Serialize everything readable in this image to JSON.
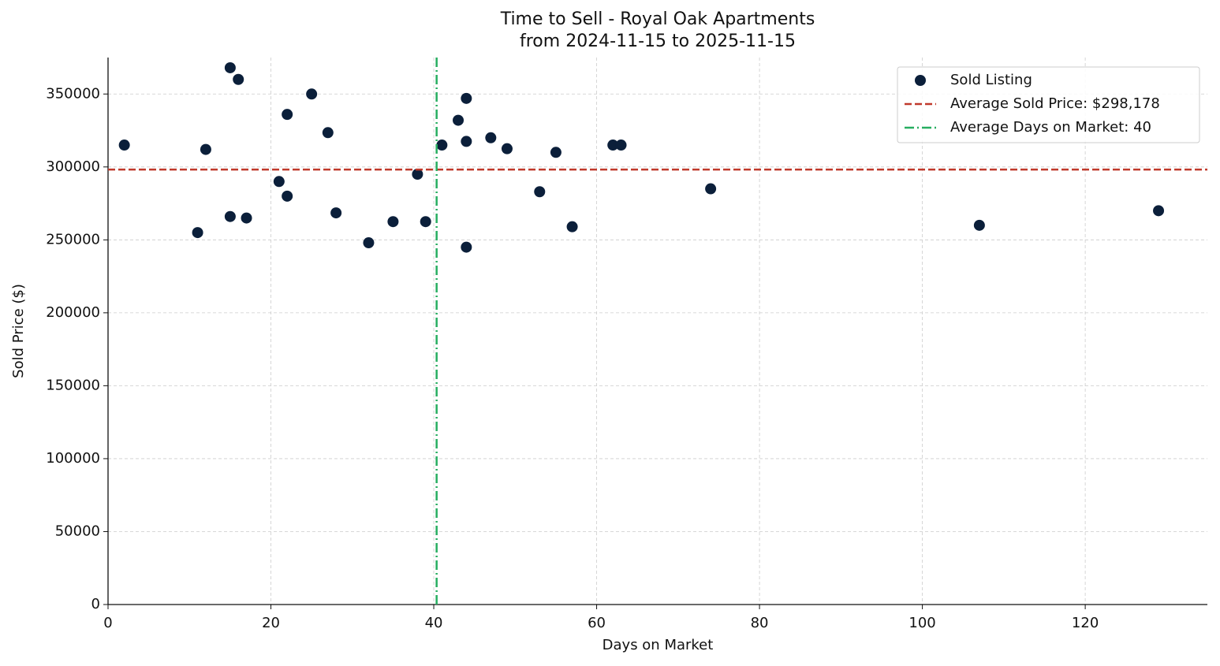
{
  "chart_data": {
    "type": "scatter",
    "title": "Time to Sell - Royal Oak Apartments",
    "subtitle": "from 2024-11-15 to 2025-11-15",
    "x_label": "Days on Market",
    "y_label": "Sold Price ($)",
    "xlim": [
      0,
      135
    ],
    "ylim": [
      0,
      375000
    ],
    "xticks": [
      0,
      20,
      40,
      60,
      80,
      100,
      120
    ],
    "yticks": [
      0,
      50000,
      100000,
      150000,
      200000,
      250000,
      300000,
      350000
    ],
    "grid": true,
    "legend": "upper right",
    "series": [
      {
        "name": "Sold Listing",
        "color": "#0b1f3a",
        "x": [
          2,
          11,
          12,
          15,
          15,
          16,
          17,
          21,
          22,
          22,
          25,
          27,
          28,
          32,
          35,
          38,
          39,
          41,
          43,
          44,
          44,
          44,
          47,
          49,
          53,
          55,
          57,
          62,
          63,
          74,
          107,
          129
        ],
        "values": [
          315000,
          255000,
          312000,
          368000,
          266000,
          360000,
          265000,
          290000,
          336000,
          280000,
          350000,
          323500,
          268500,
          248000,
          262500,
          295000,
          262500,
          315000,
          332000,
          347000,
          317500,
          245000,
          320000,
          312500,
          283000,
          310000,
          259000,
          315000,
          315000,
          285000,
          260000,
          270000
        ]
      }
    ],
    "hlines": [
      {
        "name": "Average Sold Price: $298,178",
        "value": 298178,
        "color": "#c0392b"
      }
    ],
    "vlines": [
      {
        "name": "Average Days on Market: 40",
        "value": 40.35,
        "color": "#27ae60"
      }
    ]
  }
}
